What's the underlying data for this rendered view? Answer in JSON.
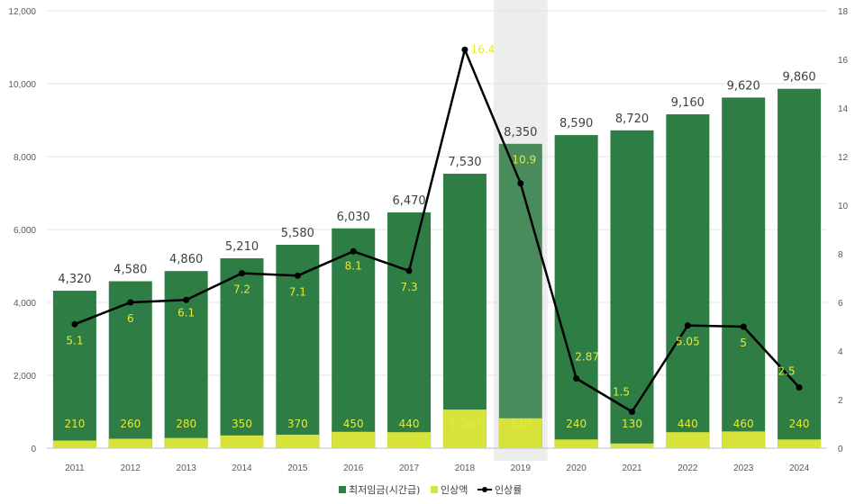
{
  "chart_data": {
    "type": "bar",
    "categories": [
      "2011",
      "2012",
      "2013",
      "2014",
      "2015",
      "2016",
      "2017",
      "2018",
      "2019",
      "2020",
      "2021",
      "2022",
      "2023",
      "2024"
    ],
    "highlight_category": "2019",
    "series": [
      {
        "name": "최저임금(시간급)",
        "kind": "bar",
        "axis": "left",
        "color": "#2e7d44",
        "values": [
          4320,
          4580,
          4860,
          5210,
          5580,
          6030,
          6470,
          7530,
          8350,
          8590,
          8720,
          9160,
          9620,
          9860
        ],
        "labels": [
          "4,320",
          "4,580",
          "4,860",
          "5,210",
          "5,580",
          "6,030",
          "6,470",
          "7,530",
          "8,350",
          "8,590",
          "8,720",
          "9,160",
          "9,620",
          "9,860"
        ]
      },
      {
        "name": "인상액",
        "kind": "bar",
        "axis": "left",
        "color": "#d7e33a",
        "values": [
          210,
          260,
          280,
          350,
          370,
          450,
          440,
          1060,
          820,
          240,
          130,
          440,
          460,
          240
        ],
        "labels": [
          "210",
          "260",
          "280",
          "350",
          "370",
          "450",
          "440",
          "1,060",
          "820",
          "240",
          "130",
          "440",
          "460",
          "240"
        ]
      },
      {
        "name": "인상률",
        "kind": "line",
        "axis": "right",
        "color": "#000000",
        "values": [
          5.1,
          6,
          6.1,
          7.2,
          7.1,
          8.1,
          7.3,
          16.4,
          10.9,
          2.87,
          1.5,
          5.05,
          5,
          2.5
        ],
        "labels": [
          "5.1",
          "6",
          "6.1",
          "7.2",
          "7.1",
          "8.1",
          "7.3",
          "16.4",
          "10.9",
          "2.87",
          "1.5",
          "5.05",
          "5",
          "2.5"
        ]
      }
    ],
    "y_left": {
      "min": 0,
      "max": 12000,
      "ticks": [
        "0",
        "2,000",
        "4,000",
        "6,000",
        "8,000",
        "10,000",
        "12,000"
      ]
    },
    "y_right": {
      "min": 0,
      "max": 18,
      "ticks": [
        "0",
        "2",
        "4",
        "6",
        "8",
        "10",
        "12",
        "14",
        "16",
        "18"
      ]
    },
    "grid": true,
    "legend": "bottom-center"
  }
}
